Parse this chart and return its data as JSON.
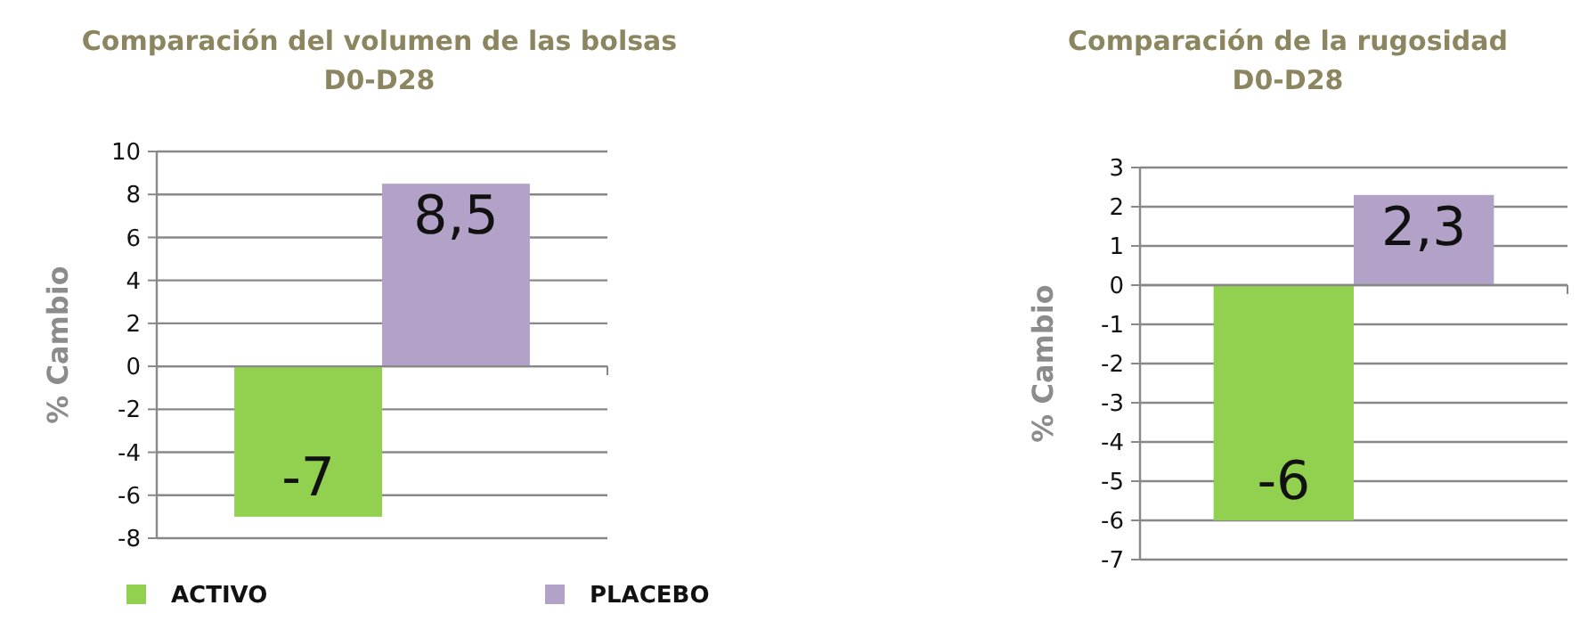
{
  "chart_data": [
    {
      "type": "bar",
      "title": "Comparación del volumen de las bolsas\nD0-D28",
      "ylabel": "% Cambio",
      "categories": [
        null
      ],
      "series": [
        {
          "name": "ACTIVO",
          "color": "#92d050",
          "values": [
            -7
          ],
          "value_labels": [
            "-7"
          ]
        },
        {
          "name": "PLACEBO",
          "color": "#b3a2c7",
          "values": [
            8.5
          ],
          "value_labels": [
            "8,5"
          ]
        }
      ],
      "ylim": [
        -8,
        10
      ],
      "yticks": [
        -8,
        -6,
        -4,
        -2,
        0,
        2,
        4,
        6,
        8,
        10
      ],
      "grid": "y",
      "legend": "bottom"
    },
    {
      "type": "bar",
      "title": "Comparación de la rugosidad\nD0-D28",
      "ylabel": "% Cambio",
      "categories": [
        null
      ],
      "series": [
        {
          "color": "#92d050",
          "values": [
            -6
          ],
          "value_labels": [
            "-6"
          ]
        },
        {
          "color": "#b3a2c7",
          "values": [
            2.3
          ],
          "value_labels": [
            "2,3"
          ]
        }
      ],
      "ylim": [
        -7,
        3
      ],
      "yticks": [
        -7,
        -6,
        -5,
        -4,
        -3,
        -2,
        -1,
        0,
        1,
        2,
        3
      ],
      "grid": "y",
      "legend": false
    }
  ]
}
